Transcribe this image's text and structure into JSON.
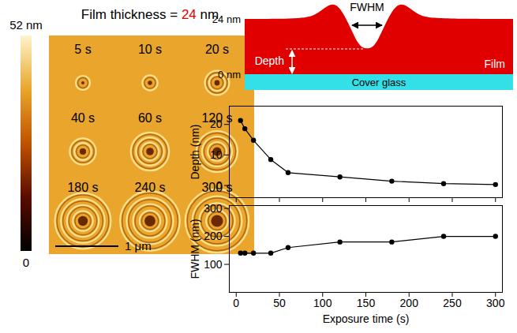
{
  "chart_data": [
    {
      "type": "image",
      "title": "Film thickness = 24 nm",
      "film_thickness": 24,
      "labels": [
        "5 s",
        "10 s",
        "20 s",
        "40 s",
        "60 s",
        "120 s",
        "180 s",
        "240 s",
        "300 s"
      ],
      "scale_bar": "1 μm",
      "colorbar": {
        "range": [
          0,
          52
        ],
        "ticks": [
          {
            "value": 52,
            "label": "52 nm"
          },
          0
        ]
      }
    },
    {
      "type": "diagram",
      "labels": {
        "top": "24 nm",
        "bottom": "0 nm",
        "width": "FWHM",
        "depth": "Depth",
        "film": "Film",
        "substrate": "Cover glass"
      },
      "colors": [
        "#e00000",
        "#33e0e8"
      ]
    },
    {
      "type": "line",
      "x": [
        5,
        10,
        20,
        40,
        60,
        120,
        180,
        240,
        300
      ],
      "values": [
        21.3,
        18.6,
        14.8,
        8.5,
        4.2,
        2.8,
        1.4,
        0.6,
        0.3
      ],
      "y_label": "Depth (nm)",
      "xlim": [
        -8,
        308
      ],
      "xticks": [
        0,
        50,
        100,
        150,
        200,
        250,
        300
      ],
      "ylim": [
        -4,
        26
      ],
      "yticks": [
        0,
        10,
        20
      ],
      "color": "#000000",
      "marker": "circle",
      "tick_labels": "y",
      "grid": false
    },
    {
      "type": "line",
      "x": [
        5,
        10,
        20,
        40,
        60,
        120,
        180,
        240,
        300
      ],
      "values": [
        140,
        140,
        140,
        140,
        160,
        180,
        180,
        200,
        200
      ],
      "x_label": "Exposure time (s)",
      "y_label": "FWHM (nm)",
      "xlim": [
        -8,
        308
      ],
      "xticks": [
        0,
        50,
        100,
        150,
        200,
        250,
        300
      ],
      "ylim": [
        0,
        310
      ],
      "yticks": [
        100,
        200,
        300
      ],
      "color": "#000000",
      "marker": "circle",
      "grid": false
    }
  ]
}
